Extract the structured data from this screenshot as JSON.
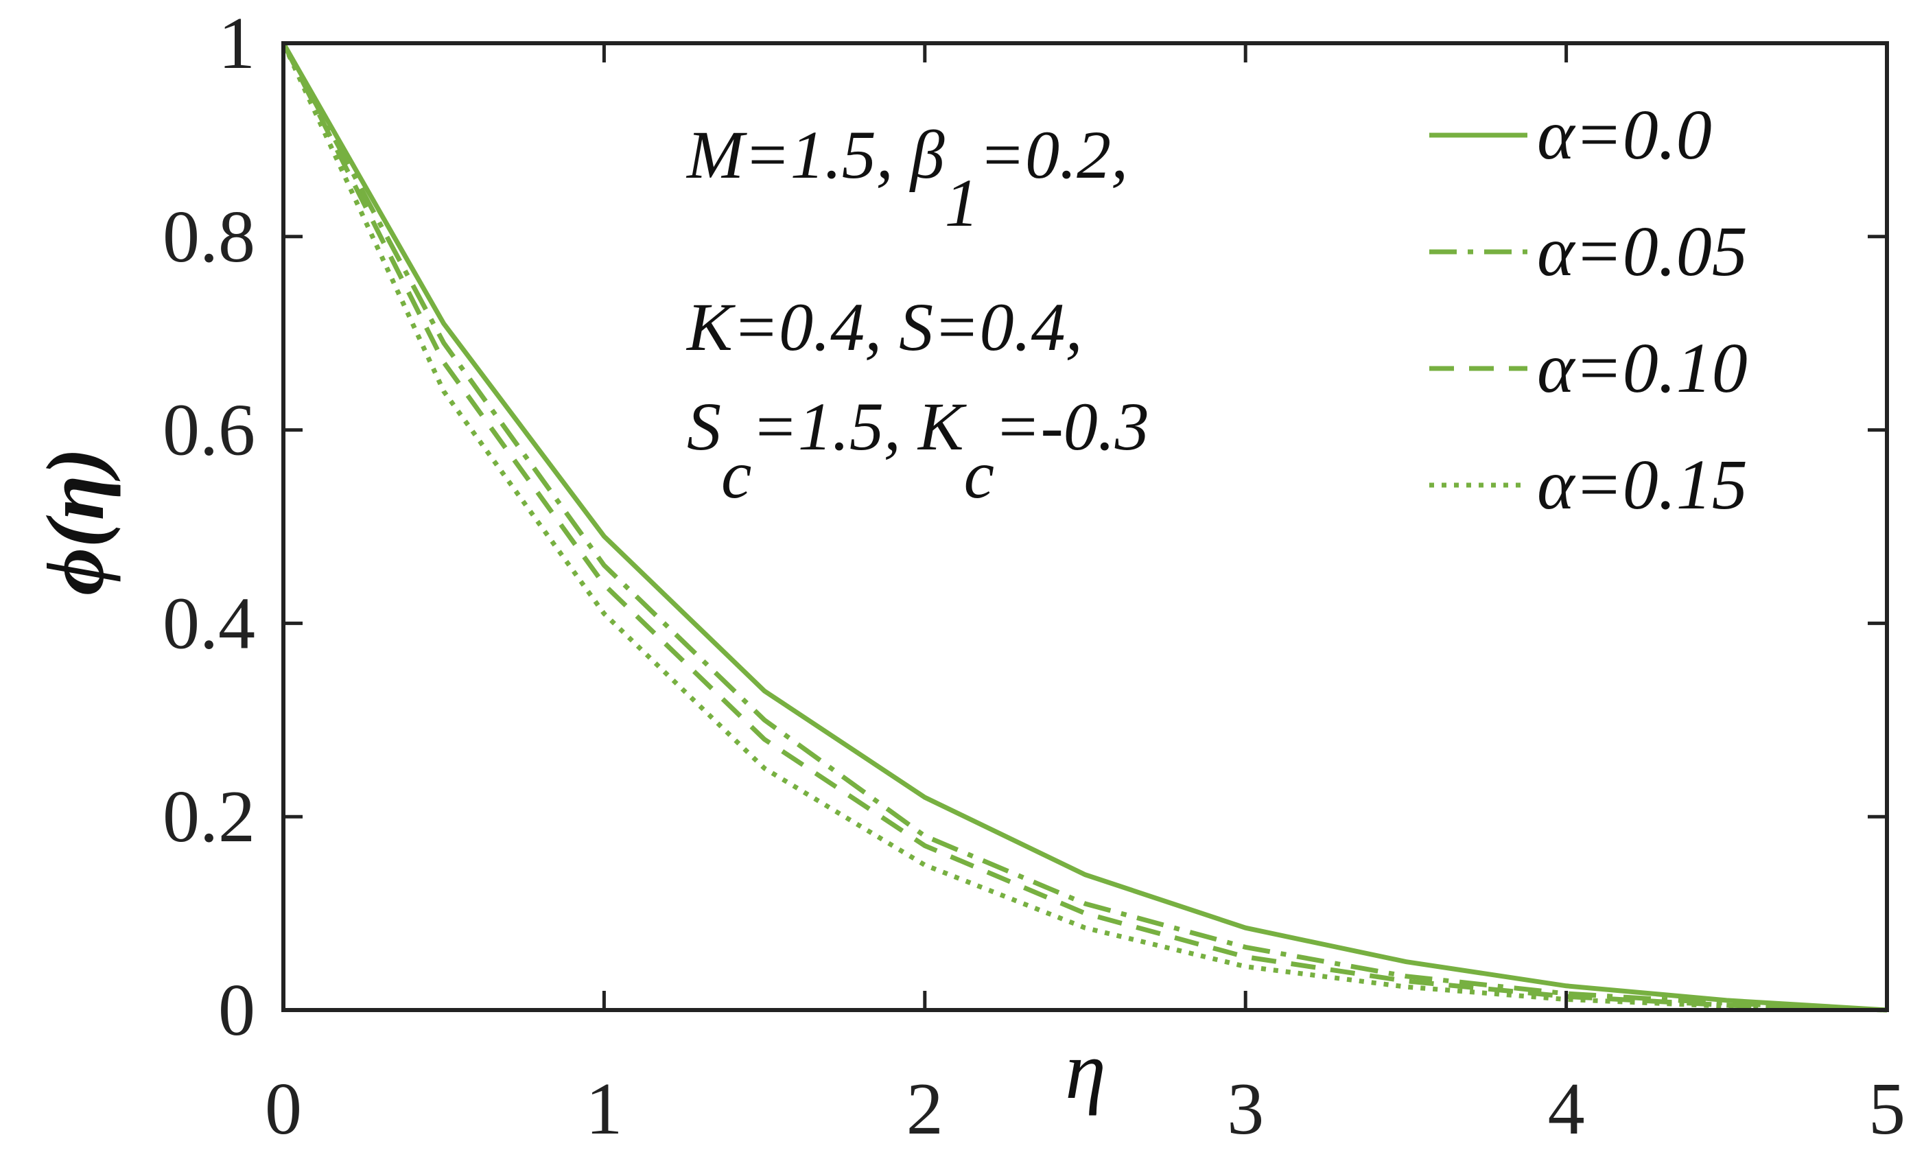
{
  "chart_data": {
    "type": "line",
    "x_label": "η",
    "y_label": "ϕ(η)",
    "annotation": [
      [
        "M=1.5, β",
        "1",
        "=0.2,"
      ],
      [
        "K=0.4, S=0.4,"
      ],
      [
        "S",
        "c",
        "=1.5, K",
        "c",
        "=-0.3"
      ]
    ],
    "x": [
      0,
      0.5,
      1,
      1.5,
      2,
      2.5,
      3,
      3.5,
      4,
      4.5,
      5
    ],
    "series": [
      {
        "name": "α=0.0",
        "color": "#77b041",
        "dash": "solid",
        "values": [
          1,
          0.71,
          0.49,
          0.33,
          0.22,
          0.14,
          0.085,
          0.05,
          0.025,
          0.01,
          0
        ]
      },
      {
        "name": "α=0.05",
        "color": "#77b041",
        "dash": "dashdot",
        "values": [
          1,
          0.69,
          0.46,
          0.3,
          0.18,
          0.11,
          0.065,
          0.035,
          0.017,
          0.007,
          0
        ]
      },
      {
        "name": "α=0.10",
        "color": "#77b041",
        "dash": "dashed",
        "values": [
          1,
          0.67,
          0.44,
          0.28,
          0.17,
          0.1,
          0.055,
          0.03,
          0.014,
          0.005,
          0
        ]
      },
      {
        "name": "α=0.15",
        "color": "#77b041",
        "dash": "dotted",
        "values": [
          1,
          0.64,
          0.41,
          0.25,
          0.15,
          0.085,
          0.045,
          0.024,
          0.011,
          0.004,
          0
        ]
      }
    ],
    "xlim": [
      0,
      5
    ],
    "xticks": [
      0,
      1,
      2,
      3,
      4,
      5
    ],
    "ylim": [
      0,
      1
    ],
    "yticks": [
      0,
      0.2,
      0.4,
      0.6,
      0.8,
      1
    ],
    "legend": "upper right"
  }
}
